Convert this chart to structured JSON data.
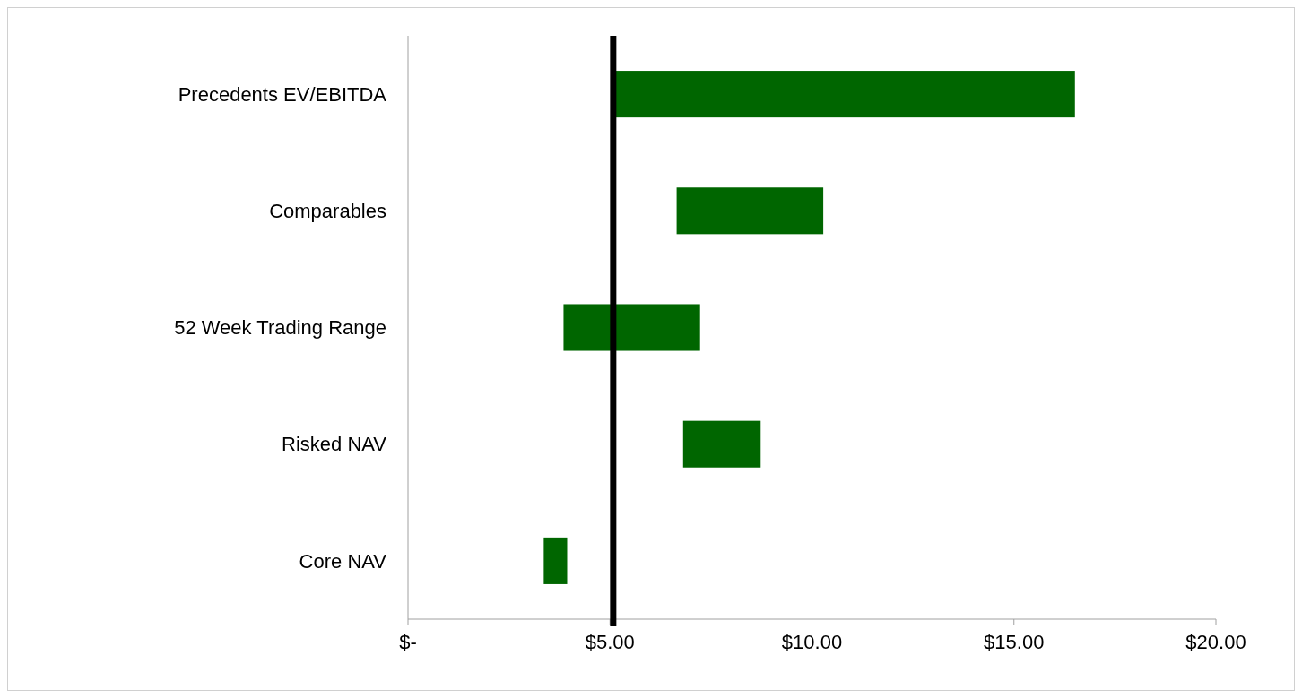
{
  "chart_data": {
    "type": "bar",
    "orientation": "horizontal",
    "categories": [
      "Precedents EV/EBITDA",
      "Comparables",
      "52 Week Trading Range",
      "Risked NAV",
      "Core NAV"
    ],
    "base": [
      5.04,
      6.65,
      3.85,
      6.81,
      3.36
    ],
    "values": [
      11.47,
      3.63,
      3.38,
      1.92,
      0.58
    ],
    "color": "#006600",
    "xlim": [
      0,
      20
    ],
    "xticks": [
      {
        "value": 0,
        "label": "$-"
      },
      {
        "value": 5,
        "label": "$5.00"
      },
      {
        "value": 10,
        "label": "$10.00"
      },
      {
        "value": 15,
        "label": "$15.00"
      },
      {
        "value": 20,
        "label": "$20.00"
      }
    ],
    "ref_lines": [
      {
        "axis": "x",
        "value": 5.08,
        "color": "#000000"
      }
    ],
    "grid": false
  }
}
